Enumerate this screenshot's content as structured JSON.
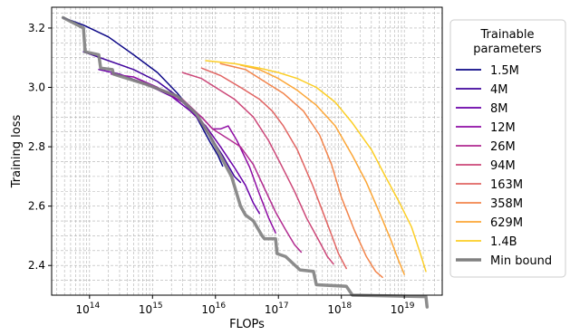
{
  "chart_data": {
    "type": "line",
    "xlabel": "FLOPs",
    "ylabel": "Training loss",
    "x_scale": "log",
    "xlim": [
      25000000000000.0,
      4e+19
    ],
    "ylim": [
      2.3,
      3.27
    ],
    "x_ticks": [
      {
        "value": 100000000000000.0,
        "base": "10",
        "exp": "14"
      },
      {
        "value": 1000000000000000.0,
        "base": "10",
        "exp": "15"
      },
      {
        "value": 1e+16,
        "base": "10",
        "exp": "16"
      },
      {
        "value": 1e+17,
        "base": "10",
        "exp": "17"
      },
      {
        "value": 1e+18,
        "base": "10",
        "exp": "18"
      },
      {
        "value": 1e+19,
        "base": "10",
        "exp": "19"
      }
    ],
    "y_ticks": [
      {
        "value": 2.4,
        "label": "2.4"
      },
      {
        "value": 2.6,
        "label": "2.6"
      },
      {
        "value": 2.8,
        "label": "2.8"
      },
      {
        "value": 3.0,
        "label": "3.0"
      },
      {
        "value": 3.2,
        "label": "3.2"
      }
    ],
    "grid": true,
    "legend": {
      "title_lines": [
        "Trainable",
        "parameters"
      ],
      "placement": "right"
    },
    "series": [
      {
        "name": "1.5M",
        "color": "#0d0887",
        "points": [
          [
            38000000000000.0,
            3.235
          ],
          [
            80000000000000.0,
            3.21
          ],
          [
            200000000000000.0,
            3.17
          ],
          [
            500000000000000.0,
            3.11
          ],
          [
            1200000000000000.0,
            3.05
          ],
          [
            2500000000000000.0,
            2.98
          ],
          [
            5000000000000000.0,
            2.9
          ],
          [
            8000000000000000.0,
            2.82
          ],
          [
            1.1e+16,
            2.77
          ],
          [
            1.3e+16,
            2.735
          ]
        ]
      },
      {
        "name": "4M",
        "color": "#41049d",
        "points": [
          [
            80000000000000.0,
            3.12
          ],
          [
            200000000000000.0,
            3.09
          ],
          [
            500000000000000.0,
            3.06
          ],
          [
            1200000000000000.0,
            3.02
          ],
          [
            2500000000000000.0,
            2.97
          ],
          [
            5000000000000000.0,
            2.9
          ],
          [
            8000000000000000.0,
            2.84
          ],
          [
            1.3e+16,
            2.77
          ],
          [
            2e+16,
            2.7
          ],
          [
            2.5e+16,
            2.68
          ]
        ]
      },
      {
        "name": "8M",
        "color": "#6a00a8",
        "points": [
          [
            140000000000000.0,
            3.06
          ],
          [
            300000000000000.0,
            3.045
          ],
          [
            800000000000000.0,
            3.01
          ],
          [
            2000000000000000.0,
            2.97
          ],
          [
            4000000000000000.0,
            2.92
          ],
          [
            7000000000000000.0,
            2.87
          ],
          [
            1.2e+16,
            2.8
          ],
          [
            2e+16,
            2.73
          ],
          [
            3e+16,
            2.67
          ],
          [
            4e+16,
            2.61
          ],
          [
            5e+16,
            2.575
          ]
        ]
      },
      {
        "name": "12M",
        "color": "#8f0da4",
        "points": [
          [
            220000000000000.0,
            3.045
          ],
          [
            500000000000000.0,
            3.035
          ],
          [
            1200000000000000.0,
            3.0
          ],
          [
            3000000000000000.0,
            2.95
          ],
          [
            6000000000000000.0,
            2.9
          ],
          [
            9000000000000000.0,
            2.86
          ],
          [
            1.2e+16,
            2.86
          ],
          [
            1.6e+16,
            2.87
          ],
          [
            2.2e+16,
            2.82
          ],
          [
            3.5e+16,
            2.73
          ],
          [
            5e+16,
            2.64
          ],
          [
            7e+16,
            2.56
          ],
          [
            9e+16,
            2.51
          ]
        ]
      },
      {
        "name": "26M",
        "color": "#b12a90",
        "points": [
          [
            600000000000000.0,
            3.02
          ],
          [
            1500000000000000.0,
            2.99
          ],
          [
            3000000000000000.0,
            2.96
          ],
          [
            6000000000000000.0,
            2.9
          ],
          [
            9000000000000000.0,
            2.86
          ],
          [
            1.5e+16,
            2.83
          ],
          [
            2.5e+16,
            2.8
          ],
          [
            4e+16,
            2.74
          ],
          [
            6e+16,
            2.66
          ],
          [
            9e+16,
            2.58
          ],
          [
            1.3e+17,
            2.52
          ],
          [
            1.8e+17,
            2.47
          ],
          [
            2.3e+17,
            2.445
          ]
        ]
      },
      {
        "name": "94M",
        "color": "#cc4778",
        "points": [
          [
            3000000000000000.0,
            3.05
          ],
          [
            6000000000000000.0,
            3.03
          ],
          [
            1e+16,
            3.0
          ],
          [
            2e+16,
            2.96
          ],
          [
            4e+16,
            2.9
          ],
          [
            7e+16,
            2.82
          ],
          [
            1.1e+17,
            2.74
          ],
          [
            1.8e+17,
            2.65
          ],
          [
            2.8e+17,
            2.56
          ],
          [
            4.5e+17,
            2.48
          ],
          [
            6e+17,
            2.43
          ],
          [
            7.5e+17,
            2.405
          ]
        ]
      },
      {
        "name": "163M",
        "color": "#e16462",
        "points": [
          [
            6000000000000000.0,
            3.065
          ],
          [
            1.2e+16,
            3.04
          ],
          [
            2.5e+16,
            3.0
          ],
          [
            5e+16,
            2.96
          ],
          [
            8e+16,
            2.92
          ],
          [
            1.2e+17,
            2.87
          ],
          [
            2e+17,
            2.79
          ],
          [
            3.5e+17,
            2.67
          ],
          [
            6e+17,
            2.54
          ],
          [
            9e+17,
            2.44
          ],
          [
            1.2e+18,
            2.39
          ]
        ]
      },
      {
        "name": "358M",
        "color": "#f2844b",
        "points": [
          [
            1.2e+16,
            3.08
          ],
          [
            3e+16,
            3.06
          ],
          [
            6e+16,
            3.02
          ],
          [
            1.2e+17,
            2.98
          ],
          [
            2.5e+17,
            2.92
          ],
          [
            4.5e+17,
            2.84
          ],
          [
            7e+17,
            2.74
          ],
          [
            1e+18,
            2.63
          ],
          [
            1.6e+18,
            2.52
          ],
          [
            2.5e+18,
            2.43
          ],
          [
            3.5e+18,
            2.38
          ],
          [
            4.5e+18,
            2.36
          ]
        ]
      },
      {
        "name": "629M",
        "color": "#fca636",
        "points": [
          [
            2.5e+16,
            3.075
          ],
          [
            5e+16,
            3.06
          ],
          [
            1e+17,
            3.03
          ],
          [
            2e+17,
            2.99
          ],
          [
            4e+17,
            2.94
          ],
          [
            8e+17,
            2.87
          ],
          [
            1.5e+18,
            2.77
          ],
          [
            2.5e+18,
            2.68
          ],
          [
            4e+18,
            2.58
          ],
          [
            6e+18,
            2.49
          ],
          [
            8e+18,
            2.42
          ],
          [
            1e+19,
            2.37
          ]
        ]
      },
      {
        "name": "1.4B",
        "color": "#fcce25",
        "points": [
          [
            7000000000000000.0,
            3.09
          ],
          [
            2e+16,
            3.08
          ],
          [
            5e+16,
            3.065
          ],
          [
            1e+17,
            3.05
          ],
          [
            2e+17,
            3.03
          ],
          [
            4e+17,
            3.0
          ],
          [
            8e+17,
            2.95
          ],
          [
            1.5e+18,
            2.88
          ],
          [
            3e+18,
            2.79
          ],
          [
            5e+18,
            2.7
          ],
          [
            8e+18,
            2.62
          ],
          [
            1.3e+19,
            2.53
          ],
          [
            1.8e+19,
            2.44
          ],
          [
            2.2e+19,
            2.38
          ]
        ]
      },
      {
        "name": "Min bound",
        "color": "#808080",
        "points": [
          [
            38000000000000.0,
            3.235
          ],
          [
            80000000000000.0,
            3.2
          ],
          [
            85000000000000.0,
            3.12
          ],
          [
            140000000000000.0,
            3.11
          ],
          [
            150000000000000.0,
            3.065
          ],
          [
            230000000000000.0,
            3.06
          ],
          [
            240000000000000.0,
            3.045
          ],
          [
            800000000000000.0,
            3.01
          ],
          [
            2500000000000000.0,
            2.97
          ],
          [
            5000000000000000.0,
            2.91
          ],
          [
            8000000000000000.0,
            2.84
          ],
          [
            1.2e+16,
            2.77
          ],
          [
            1.8e+16,
            2.7
          ],
          [
            2.5e+16,
            2.6
          ],
          [
            3e+16,
            2.57
          ],
          [
            4e+16,
            2.55
          ],
          [
            5.5e+16,
            2.5
          ],
          [
            6e+16,
            2.49
          ],
          [
            9e+16,
            2.49
          ],
          [
            9.5e+16,
            2.44
          ],
          [
            1.3e+17,
            2.43
          ],
          [
            2.2e+17,
            2.385
          ],
          [
            3.6e+17,
            2.38
          ],
          [
            4e+17,
            2.335
          ],
          [
            1.2e+18,
            2.33
          ],
          [
            1.5e+18,
            2.3
          ],
          [
            2.2e+19,
            2.295
          ],
          [
            2.3e+19,
            2.26
          ]
        ]
      }
    ]
  }
}
